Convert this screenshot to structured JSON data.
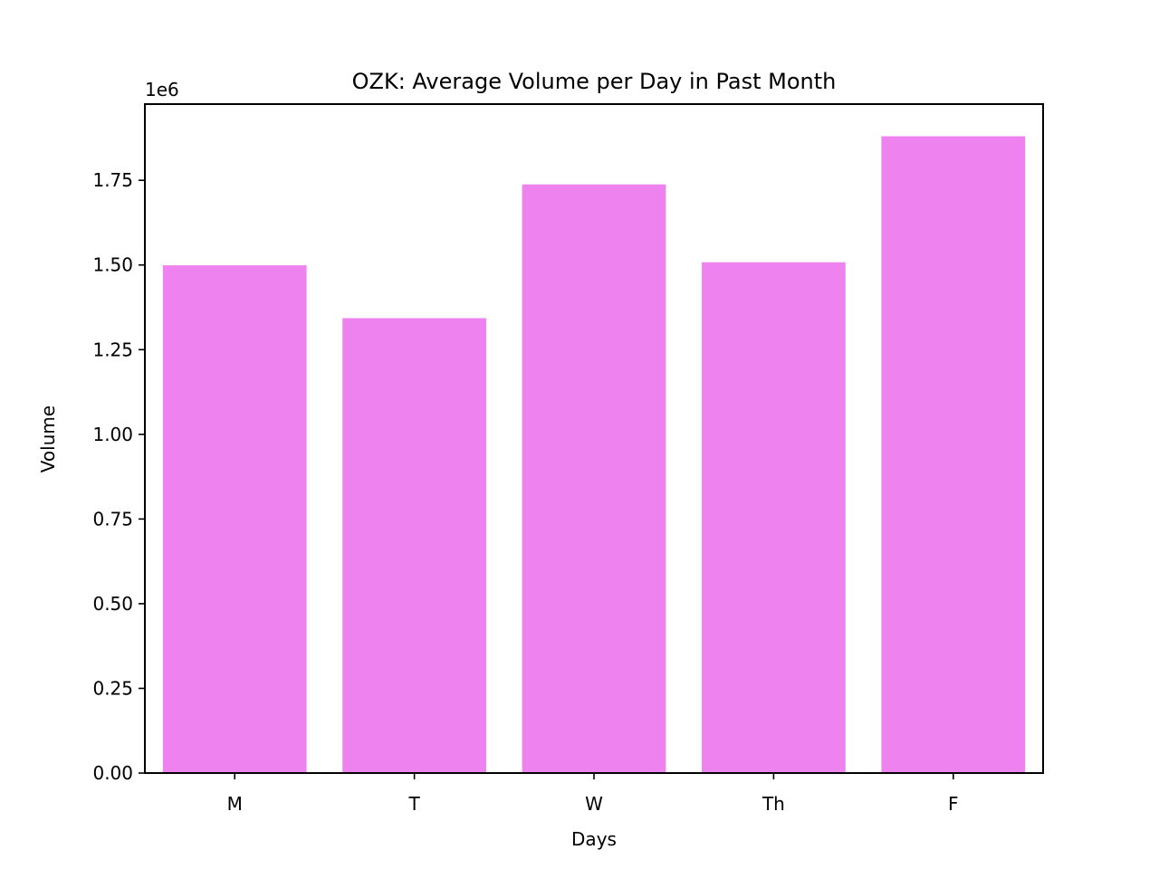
{
  "chart_data": {
    "type": "bar",
    "title": "OZK: Average Volume per Day in Past Month",
    "xlabel": "Days",
    "ylabel": "Volume",
    "offset_label": "1e6",
    "categories": [
      "M",
      "T",
      "W",
      "Th",
      "F"
    ],
    "values": [
      1499000,
      1343000,
      1738000,
      1508000,
      1880000
    ],
    "ylim": [
      0,
      1975000
    ],
    "yticks": [
      0,
      250000,
      500000,
      750000,
      1000000,
      1250000,
      1500000,
      1750000
    ],
    "ytick_labels": [
      "0.00",
      "0.25",
      "0.50",
      "0.75",
      "1.00",
      "1.25",
      "1.50",
      "1.75"
    ],
    "bar_color": "#ee82ee",
    "grid": false,
    "legend": "none"
  }
}
